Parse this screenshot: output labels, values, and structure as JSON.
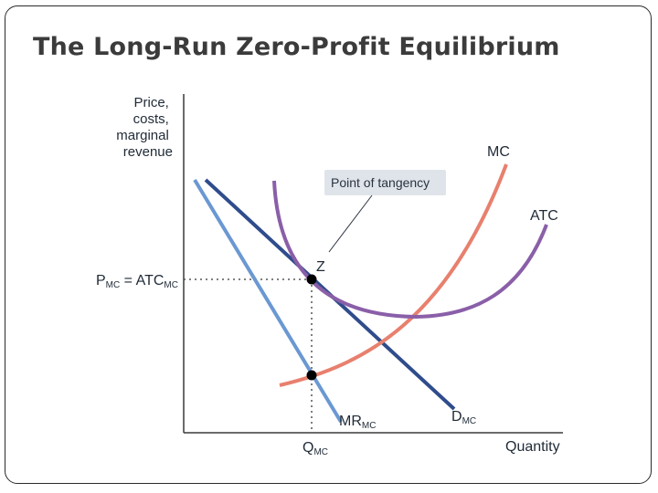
{
  "slide": {
    "title": "The Long-Run Zero-Profit Equilibrium"
  },
  "diagram": {
    "y_axis_label_lines": [
      "Price,",
      "costs,",
      "marginal",
      "revenue"
    ],
    "x_axis_label": "Quantity",
    "price_label": {
      "main": "P",
      "sub": "MC",
      "eq": " = ATC",
      "sub2": "MC"
    },
    "quantity_label": {
      "main": "Q",
      "sub": "MC"
    },
    "curves": {
      "mc": {
        "label": "MC",
        "color": "#e8806e"
      },
      "atc": {
        "label": "ATC",
        "color": "#8a5fa8"
      },
      "demand": {
        "main": "D",
        "sub": "MC",
        "color": "#2f4c8c"
      },
      "mr": {
        "main": "MR",
        "sub": "MC",
        "color": "#6b98d2"
      }
    },
    "points": {
      "tangency": {
        "label": "Z"
      }
    },
    "callout": {
      "text": "Point of tangency"
    },
    "colors": {
      "axis": "#3a3a3a",
      "callout_bg": "#dfe4ea",
      "dots": "#000000"
    }
  }
}
